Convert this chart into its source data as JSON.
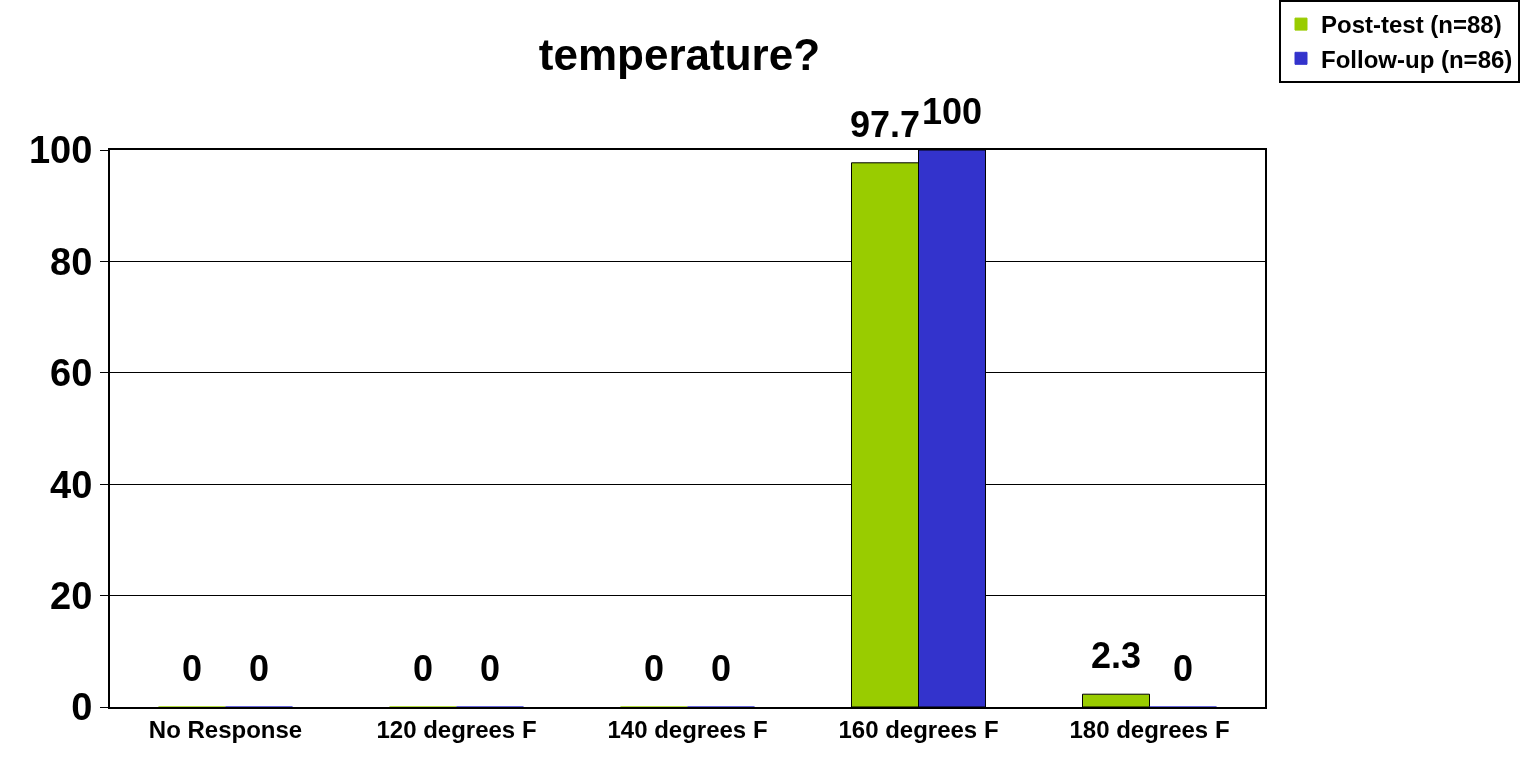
{
  "chart_data": {
    "type": "bar",
    "title": "temperature?",
    "categories": [
      "No Response",
      "120 degrees F",
      "140 degrees F",
      "160 degrees F",
      "180 degrees F"
    ],
    "series": [
      {
        "name": "Post-test (n=88)",
        "color": "#99cc00",
        "values": [
          0,
          0,
          0,
          97.7,
          2.3
        ]
      },
      {
        "name": "Follow-up (n=86)",
        "color": "#3333cc",
        "values": [
          0,
          0,
          0,
          100,
          0
        ]
      }
    ],
    "ylim": [
      0,
      100
    ],
    "yticks": [
      0,
      20,
      40,
      60,
      80,
      100
    ],
    "grid": "y",
    "legend": "top right",
    "data_labels": true
  }
}
